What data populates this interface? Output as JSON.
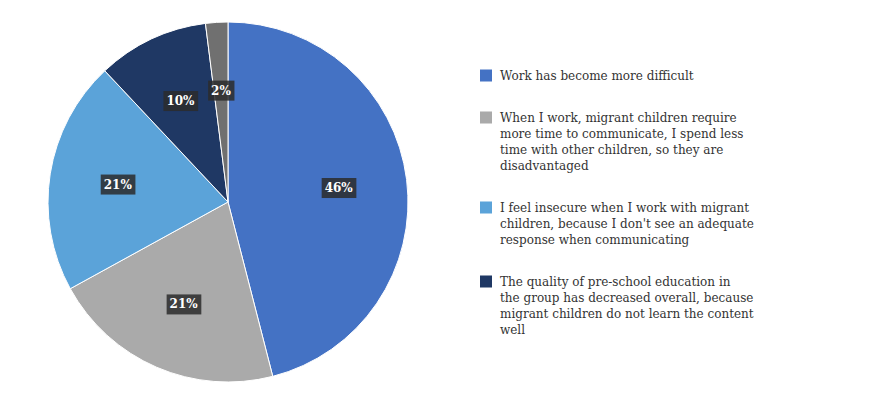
{
  "chart_data": {
    "type": "pie",
    "categories": [
      "Work has become more difficult",
      "When I work, migrant children require\nmore time to communicate, I spend less\ntime with other children, so they are\ndisadvantaged",
      "I feel insecure when I work with migrant\nchildren, because I don't see an adequate\nresponse when communicating",
      "The quality of pre-school education in\nthe group has decreased overall, because\nmigrant children do not learn the content\nwell",
      null
    ],
    "values": [
      46,
      21,
      21,
      10,
      2
    ],
    "value_labels": [
      "46%",
      "21%",
      "21%",
      "10%",
      "2%"
    ],
    "colors": [
      "#4472C4",
      "#AAAAAA",
      "#5BA3D9",
      "#1F3864",
      "#707070"
    ],
    "data_labels": true,
    "legend": "right"
  }
}
